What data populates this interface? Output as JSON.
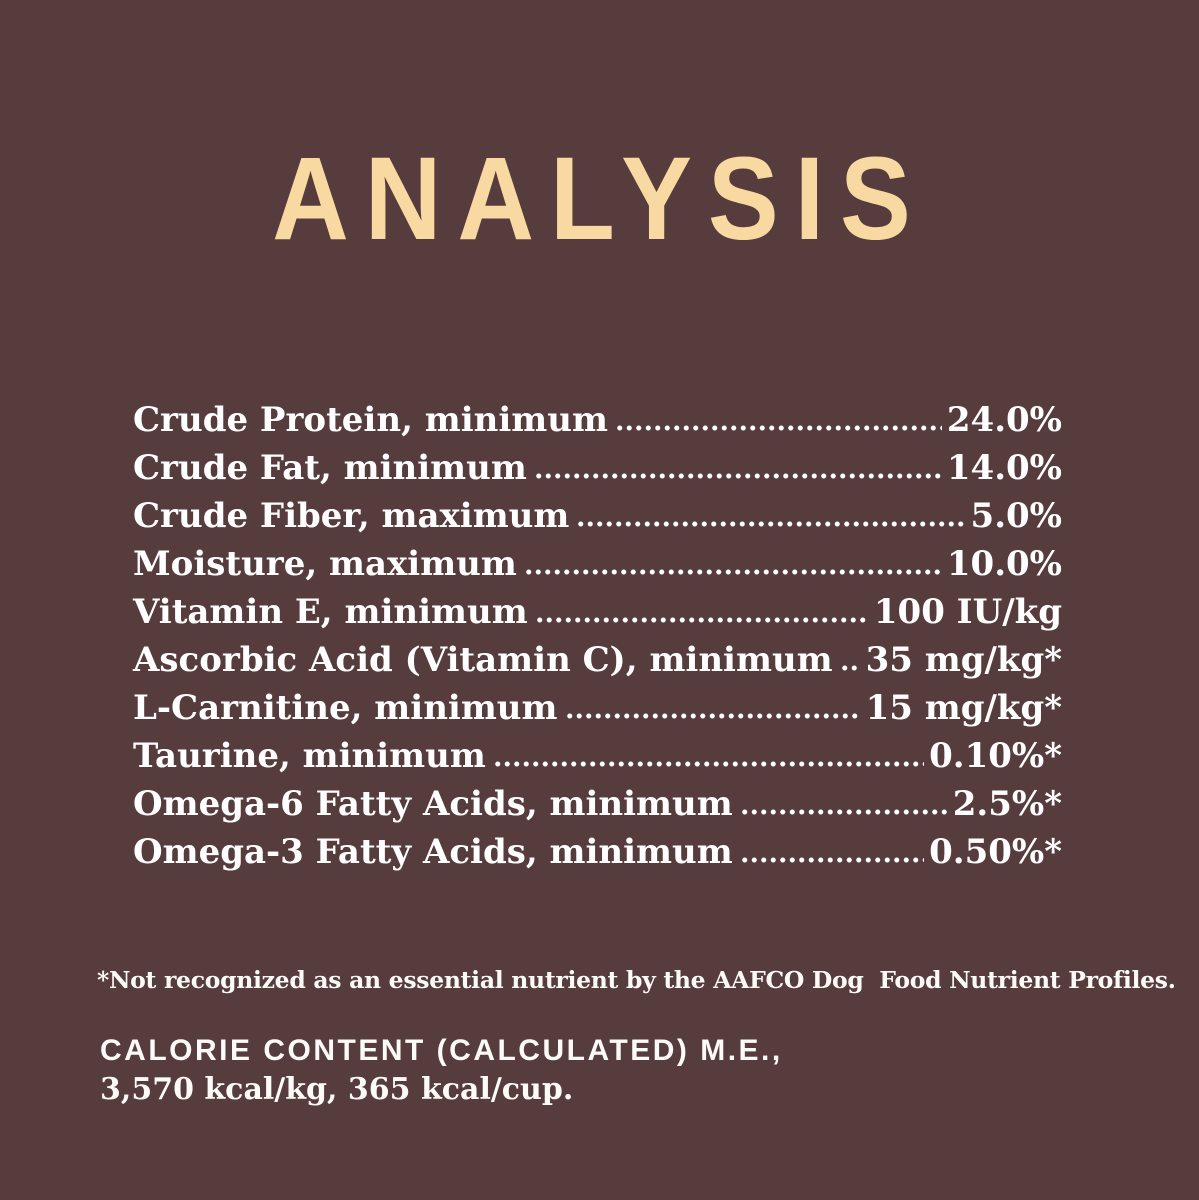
{
  "page": {
    "background_color": "#573C3E",
    "title_color": "#F8D9A2",
    "body_text_color": "#FFFFFF"
  },
  "title": "ANALYSIS",
  "analysis_rows": [
    {
      "label": "Crude Protein, minimum",
      "value": "24.0%"
    },
    {
      "label": "Crude Fat, minimum",
      "value": "14.0%"
    },
    {
      "label": "Crude Fiber, maximum",
      "value": "5.0%"
    },
    {
      "label": "Moisture, maximum",
      "value": "10.0%"
    },
    {
      "label": "Vitamin E, minimum",
      "value": "100 IU/kg"
    },
    {
      "label": "Ascorbic Acid (Vitamin C), minimum",
      "value": "35 mg/kg*"
    },
    {
      "label": "L-Carnitine, minimum",
      "value": "15 mg/kg*"
    },
    {
      "label": "Taurine, minimum",
      "value": "0.10%*"
    },
    {
      "label": "Omega-6 Fatty Acids, minimum",
      "value": "2.5%*"
    },
    {
      "label": "Omega-3 Fatty Acids, minimum",
      "value": "0.50%*"
    }
  ],
  "footnote": "*Not recognized as an essential nutrient by the AAFCO Dog  Food Nutrient Profiles.",
  "calorie_content": {
    "heading": "CALORIE CONTENT (CALCULATED) M.E.,",
    "values": "3,570 kcal/kg, 365 kcal/cup."
  }
}
